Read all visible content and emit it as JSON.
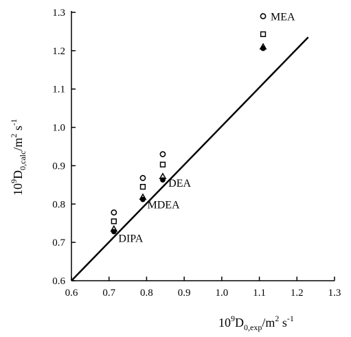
{
  "chart_data": {
    "type": "scatter",
    "title": "",
    "xlabel": {
      "base": "10",
      "exp": "9",
      "symbol": "D",
      "subscript": "0,exp",
      "unit": "/m",
      "unit_exp": "2",
      "rest": " s",
      "rest_exp": "-1"
    },
    "ylabel": {
      "base": "10",
      "exp": "9",
      "symbol": "D",
      "subscript": "0,calc",
      "unit": "/m",
      "unit_exp": "2",
      "rest": " s",
      "rest_exp": "-1"
    },
    "xlim": [
      0.6,
      1.3
    ],
    "ylim": [
      0.6,
      1.3
    ],
    "x_ticks": [
      "0.6",
      "0.7",
      "0.8",
      "0.9",
      "1.0",
      "1.1",
      "1.2",
      "1.3"
    ],
    "y_ticks": [
      "0.6",
      "0.7",
      "0.8",
      "0.9",
      "1.0",
      "1.1",
      "1.2",
      "1.3"
    ],
    "grid": false,
    "reference_line": {
      "x": [
        0.6,
        1.23
      ],
      "y": [
        0.6,
        1.235
      ]
    },
    "series": [
      {
        "marker": "circle",
        "points": [
          [
            0.713,
            0.778
          ],
          [
            0.79,
            0.868
          ],
          [
            0.843,
            0.93
          ],
          [
            1.11,
            1.29
          ]
        ]
      },
      {
        "marker": "square",
        "points": [
          [
            0.713,
            0.755
          ],
          [
            0.79,
            0.845
          ],
          [
            0.843,
            0.903
          ],
          [
            1.11,
            1.243
          ]
        ]
      },
      {
        "marker": "triangle",
        "points": [
          [
            0.713,
            0.735
          ],
          [
            0.79,
            0.818
          ],
          [
            0.843,
            0.872
          ],
          [
            1.11,
            1.21
          ]
        ]
      },
      {
        "marker": "filled-circle",
        "points": [
          [
            0.713,
            0.728
          ],
          [
            0.79,
            0.812
          ],
          [
            0.843,
            0.863
          ],
          [
            1.11,
            1.206
          ]
        ]
      }
    ],
    "annotations": [
      {
        "text": "MEA",
        "x": 1.13,
        "y": 1.29
      },
      {
        "text": "DEA",
        "x": 0.858,
        "y": 0.856
      },
      {
        "text": "MDEA",
        "x": 0.802,
        "y": 0.8
      },
      {
        "text": "DIPA",
        "x": 0.725,
        "y": 0.712
      }
    ]
  }
}
